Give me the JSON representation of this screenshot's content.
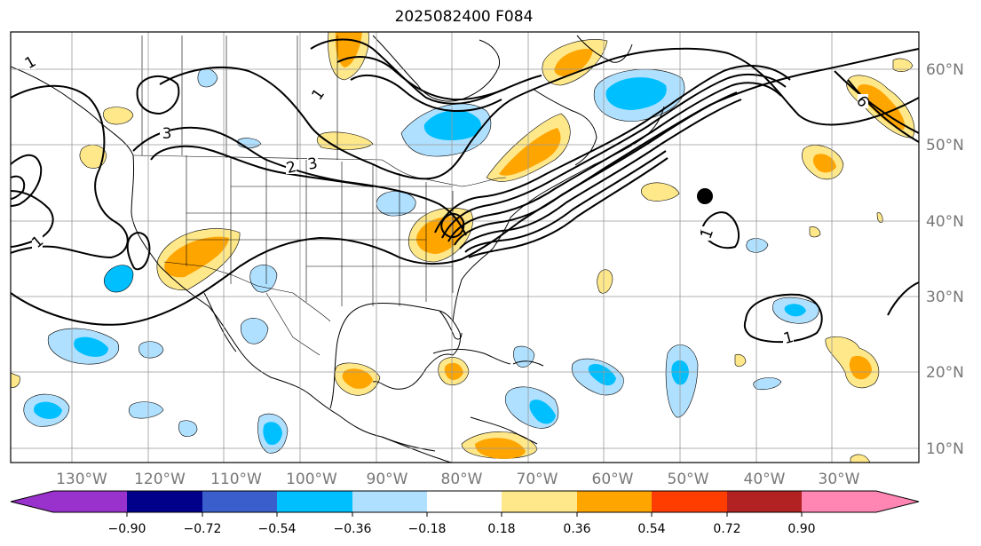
{
  "title": "2025082400 F084",
  "lon_labels": [
    "130°W",
    "120°W",
    "110°W",
    "100°W",
    "90°W",
    "80°W",
    "70°W",
    "60°W",
    "50°W",
    "40°W",
    "30°W"
  ],
  "lat_labels": [
    "60°N",
    "50°N",
    "40°N",
    "30°N",
    "20°N",
    "10°N"
  ],
  "contour_labels": [
    "1",
    "1",
    "2",
    "3",
    "3",
    "1",
    "1",
    "1",
    "6"
  ],
  "colorbar": {
    "ticks": [
      "−0.90",
      "−0.72",
      "−0.54",
      "−0.36",
      "−0.18",
      "0.18",
      "0.36",
      "0.54",
      "0.72",
      "0.90"
    ],
    "colors": {
      "under": "#9932cc",
      "bins": [
        "#9932cc",
        "#00008b",
        "#3a5fcd",
        "#00bfff",
        "#b0e0ff",
        "#ffffff",
        "#ffe88a",
        "#ffa500",
        "#ff3d00",
        "#b22222",
        "#ff85b3"
      ],
      "over": "#ff85b3"
    }
  },
  "colors": {
    "light_blue": "#b0e0ff",
    "blue": "#00bfff",
    "light_yellow": "#ffe88a",
    "orange": "#ffa500",
    "contour": "#000000",
    "grid": "#999999"
  }
}
